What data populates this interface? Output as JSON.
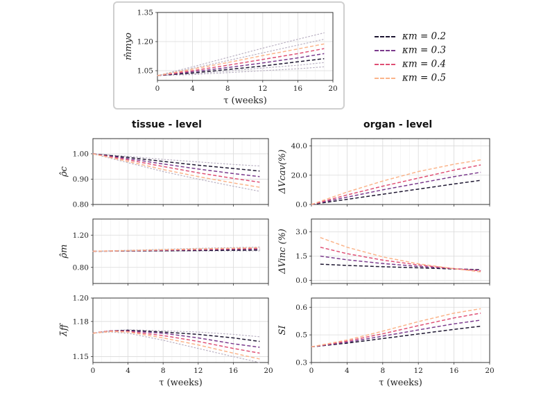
{
  "column_headers": {
    "left": "tissue - level",
    "right": "organ - level"
  },
  "legend": [
    {
      "label": "κm = 0.2",
      "color": "#1c1530"
    },
    {
      "label": "κm = 0.3",
      "color": "#7a3a8c"
    },
    {
      "label": "κm = 0.4",
      "color": "#df4f74"
    },
    {
      "label": "κm = 0.5",
      "color": "#fbb48a"
    }
  ],
  "kappa_values": [
    0.2,
    0.3,
    0.4,
    0.5
  ],
  "chart_data": [
    {
      "id": "m_myo",
      "type": "line",
      "ylabel": "m̂myo",
      "xlabel": "τ (weeks)",
      "xlim": [
        0,
        20
      ],
      "xticks": [
        0,
        4,
        8,
        12,
        16,
        20
      ],
      "ylim": [
        1.0,
        1.35
      ],
      "yticks": [
        1.05,
        1.2,
        1.35
      ],
      "ytick_labels": [
        "1.05",
        "1.20",
        "1.35"
      ],
      "x": [
        0,
        4,
        8,
        12,
        16,
        19
      ],
      "series": [
        {
          "kappa": 0.2,
          "values": [
            1.025,
            1.038,
            1.056,
            1.074,
            1.096,
            1.112
          ]
        },
        {
          "kappa": 0.3,
          "values": [
            1.025,
            1.044,
            1.066,
            1.09,
            1.116,
            1.138
          ]
        },
        {
          "kappa": 0.4,
          "values": [
            1.025,
            1.05,
            1.078,
            1.108,
            1.138,
            1.164
          ]
        },
        {
          "kappa": 0.5,
          "values": [
            1.025,
            1.058,
            1.092,
            1.128,
            1.162,
            1.188
          ]
        }
      ],
      "dotted_series": [
        {
          "values": [
            1.025,
            1.03,
            1.04,
            1.05,
            1.06,
            1.07
          ]
        },
        {
          "values": [
            1.025,
            1.034,
            1.048,
            1.064,
            1.078,
            1.092
          ]
        },
        {
          "values": [
            1.025,
            1.062,
            1.102,
            1.142,
            1.182,
            1.212
          ]
        },
        {
          "values": [
            1.025,
            1.07,
            1.118,
            1.166,
            1.212,
            1.245
          ]
        }
      ]
    },
    {
      "id": "rho_c",
      "type": "line",
      "ylabel": "ρ̂c",
      "xlabel": "",
      "xlim": [
        0,
        20
      ],
      "xticks": [
        0,
        4,
        8,
        12,
        16,
        20
      ],
      "show_xticklabels": false,
      "ylim": [
        0.8,
        1.06
      ],
      "yticks": [
        0.8,
        0.9,
        1.0
      ],
      "ytick_labels": [
        "0.80",
        "0.90",
        "1.00"
      ],
      "x": [
        0,
        4,
        8,
        12,
        16,
        19
      ],
      "series": [
        {
          "kappa": 0.2,
          "values": [
            1.0,
            0.986,
            0.97,
            0.955,
            0.942,
            0.932
          ]
        },
        {
          "kappa": 0.3,
          "values": [
            1.0,
            0.981,
            0.96,
            0.94,
            0.922,
            0.91
          ]
        },
        {
          "kappa": 0.4,
          "values": [
            1.0,
            0.976,
            0.95,
            0.925,
            0.903,
            0.888
          ]
        },
        {
          "kappa": 0.5,
          "values": [
            1.0,
            0.97,
            0.938,
            0.91,
            0.885,
            0.868
          ]
        }
      ],
      "dotted_series": [
        {
          "values": [
            1.0,
            0.99,
            0.978,
            0.968,
            0.958,
            0.952
          ]
        },
        {
          "values": [
            1.0,
            0.965,
            0.93,
            0.9,
            0.872,
            0.852
          ]
        }
      ]
    },
    {
      "id": "rho_m",
      "type": "line",
      "ylabel": "ρ̂m",
      "xlabel": "",
      "xlim": [
        0,
        20
      ],
      "xticks": [
        0,
        4,
        8,
        12,
        16,
        20
      ],
      "show_xticklabels": false,
      "ylim": [
        0.6,
        1.4
      ],
      "yticks": [
        0.8,
        1.2
      ],
      "ytick_labels": [
        "0.80",
        "1.20"
      ],
      "x": [
        0,
        4,
        8,
        12,
        16,
        19
      ],
      "series": [
        {
          "kappa": 0.2,
          "values": [
            1.0,
            1.003,
            1.006,
            1.009,
            1.012,
            1.014
          ]
        },
        {
          "kappa": 0.3,
          "values": [
            1.0,
            1.005,
            1.011,
            1.017,
            1.023,
            1.027
          ]
        },
        {
          "kappa": 0.4,
          "values": [
            1.0,
            1.007,
            1.015,
            1.023,
            1.031,
            1.036
          ]
        },
        {
          "kappa": 0.5,
          "values": [
            1.0,
            1.009,
            1.019,
            1.029,
            1.038,
            1.044
          ]
        }
      ],
      "dotted_series": [
        {
          "values": [
            1.0,
            1.001,
            1.002,
            1.003,
            1.004,
            1.005
          ]
        },
        {
          "values": [
            1.0,
            1.012,
            1.024,
            1.036,
            1.046,
            1.052
          ]
        }
      ]
    },
    {
      "id": "lambda_ff",
      "type": "line",
      "ylabel": "λ̄ff",
      "xlabel": "τ (weeks)",
      "xlim": [
        0,
        20
      ],
      "xticks": [
        0,
        4,
        8,
        12,
        16,
        20
      ],
      "ylim": [
        1.145,
        1.2
      ],
      "yticks": [
        1.15,
        1.18,
        1.2
      ],
      "ytick_labels": [
        "1.15",
        "1.18",
        "1.20"
      ],
      "x": [
        0,
        2,
        4,
        8,
        12,
        16,
        19
      ],
      "series": [
        {
          "kappa": 0.2,
          "values": [
            1.17,
            1.172,
            1.1725,
            1.171,
            1.169,
            1.166,
            1.163
          ]
        },
        {
          "kappa": 0.3,
          "values": [
            1.17,
            1.172,
            1.172,
            1.17,
            1.166,
            1.161,
            1.158
          ]
        },
        {
          "kappa": 0.4,
          "values": [
            1.17,
            1.172,
            1.1715,
            1.168,
            1.163,
            1.157,
            1.153
          ]
        },
        {
          "kappa": 0.5,
          "values": [
            1.17,
            1.1715,
            1.171,
            1.166,
            1.16,
            1.153,
            1.148
          ]
        }
      ],
      "dotted_series": [
        {
          "values": [
            1.17,
            1.172,
            1.173,
            1.172,
            1.171,
            1.169,
            1.167
          ]
        },
        {
          "values": [
            1.17,
            1.171,
            1.17,
            1.164,
            1.157,
            1.15,
            1.145
          ]
        }
      ]
    },
    {
      "id": "dV_cav",
      "type": "line",
      "ylabel": "ΔVcav(%)",
      "xlabel": "",
      "xlim": [
        0,
        20
      ],
      "xticks": [
        0,
        4,
        8,
        12,
        16,
        20
      ],
      "show_xticklabels": false,
      "ylim": [
        0,
        45
      ],
      "yticks": [
        0,
        20,
        40
      ],
      "ytick_labels": [
        "0.0",
        "20.0",
        "40.0"
      ],
      "x": [
        0,
        4,
        8,
        12,
        16,
        19
      ],
      "series": [
        {
          "kappa": 0.2,
          "values": [
            0,
            3.5,
            7.0,
            10.5,
            14.0,
            16.5
          ]
        },
        {
          "kappa": 0.3,
          "values": [
            0,
            5.0,
            10.0,
            14.5,
            19.0,
            22.0
          ]
        },
        {
          "kappa": 0.4,
          "values": [
            0,
            6.5,
            12.5,
            18.0,
            23.5,
            27.0
          ]
        },
        {
          "kappa": 0.5,
          "values": [
            0,
            8.5,
            16.0,
            22.5,
            27.5,
            30.5
          ]
        }
      ]
    },
    {
      "id": "dV_inc",
      "type": "line",
      "ylabel": "ΔVinc (%)",
      "xlabel": "",
      "xlim": [
        0,
        20
      ],
      "xticks": [
        0,
        4,
        8,
        12,
        16,
        20
      ],
      "show_xticklabels": false,
      "ylim": [
        -0.2,
        3.8
      ],
      "yticks": [
        0.0,
        1.5,
        3.0
      ],
      "ytick_labels": [
        "0.0",
        "1.5",
        "3.0"
      ],
      "x": [
        1,
        4,
        8,
        12,
        16,
        19
      ],
      "series": [
        {
          "kappa": 0.2,
          "values": [
            1.0,
            0.92,
            0.84,
            0.77,
            0.7,
            0.66
          ]
        },
        {
          "kappa": 0.3,
          "values": [
            1.5,
            1.27,
            1.04,
            0.86,
            0.72,
            0.63
          ]
        },
        {
          "kappa": 0.4,
          "values": [
            2.05,
            1.65,
            1.25,
            0.95,
            0.72,
            0.58
          ]
        },
        {
          "kappa": 0.5,
          "values": [
            2.65,
            2.05,
            1.45,
            1.02,
            0.72,
            0.52
          ]
        }
      ]
    },
    {
      "id": "SI",
      "type": "line",
      "ylabel": "SI",
      "xlabel": "τ (weeks)",
      "xlim": [
        0,
        20
      ],
      "xticks": [
        0,
        4,
        8,
        12,
        16,
        20
      ],
      "ylim": [
        0.3,
        0.65
      ],
      "yticks": [
        0.3,
        0.45,
        0.6
      ],
      "ytick_labels": [
        "0.3",
        "0.5",
        "0.6"
      ],
      "x": [
        0,
        4,
        8,
        12,
        16,
        19
      ],
      "series": [
        {
          "kappa": 0.2,
          "values": [
            0.385,
            0.405,
            0.43,
            0.455,
            0.48,
            0.497
          ]
        },
        {
          "kappa": 0.3,
          "values": [
            0.385,
            0.41,
            0.443,
            0.477,
            0.51,
            0.53
          ]
        },
        {
          "kappa": 0.4,
          "values": [
            0.385,
            0.416,
            0.456,
            0.5,
            0.542,
            0.568
          ]
        },
        {
          "kappa": 0.5,
          "values": [
            0.385,
            0.422,
            0.47,
            0.522,
            0.568,
            0.592
          ]
        }
      ]
    }
  ]
}
